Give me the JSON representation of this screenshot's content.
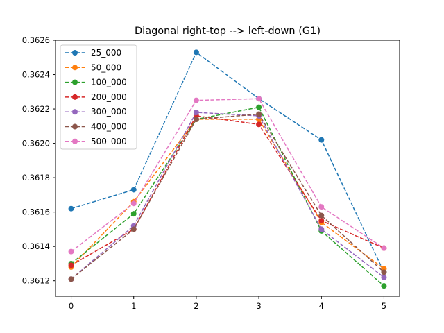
{
  "chart_data": {
    "type": "line",
    "title": "Diagonal right-top --> left-down (G1)",
    "xlabel": "",
    "ylabel": "",
    "x": [
      0,
      1,
      2,
      3,
      4,
      5
    ],
    "xticks": [
      "0",
      "1",
      "2",
      "3",
      "4",
      "5"
    ],
    "yticks": [
      "0.3612",
      "0.3614",
      "0.3616",
      "0.3618",
      "0.3620",
      "0.3622",
      "0.3624",
      "0.3626"
    ],
    "xlim": [
      -0.25,
      5.25
    ],
    "ylim": [
      0.36111,
      0.3626
    ],
    "legend_position": "upper-left",
    "line_style": "dashed",
    "marker": "circle",
    "grid": false,
    "series": [
      {
        "name": "25_000",
        "color": "#1f77b4",
        "values": [
          0.36162,
          0.36173,
          0.36253,
          0.36226,
          0.36202,
          0.36125
        ]
      },
      {
        "name": "50_000",
        "color": "#ff7f0e",
        "values": [
          0.36128,
          0.36166,
          0.36214,
          0.36214,
          0.36154,
          0.36127
        ]
      },
      {
        "name": "100_000",
        "color": "#2ca02c",
        "values": [
          0.3613,
          0.36159,
          0.36214,
          0.36221,
          0.36149,
          0.36117
        ]
      },
      {
        "name": "200_000",
        "color": "#d62728",
        "values": [
          0.36129,
          0.3615,
          0.36216,
          0.36211,
          0.36155,
          0.36139
        ]
      },
      {
        "name": "300_000",
        "color": "#9467bd",
        "values": [
          0.36121,
          0.36152,
          0.36218,
          0.36216,
          0.3615,
          0.36122
        ]
      },
      {
        "name": "400_000",
        "color": "#8c564b",
        "values": [
          0.36121,
          0.3615,
          0.36214,
          0.36217,
          0.36158,
          0.36125
        ]
      },
      {
        "name": "500_000",
        "color": "#e377c2",
        "values": [
          0.36137,
          0.36165,
          0.36225,
          0.36226,
          0.36163,
          0.36139
        ]
      }
    ]
  }
}
